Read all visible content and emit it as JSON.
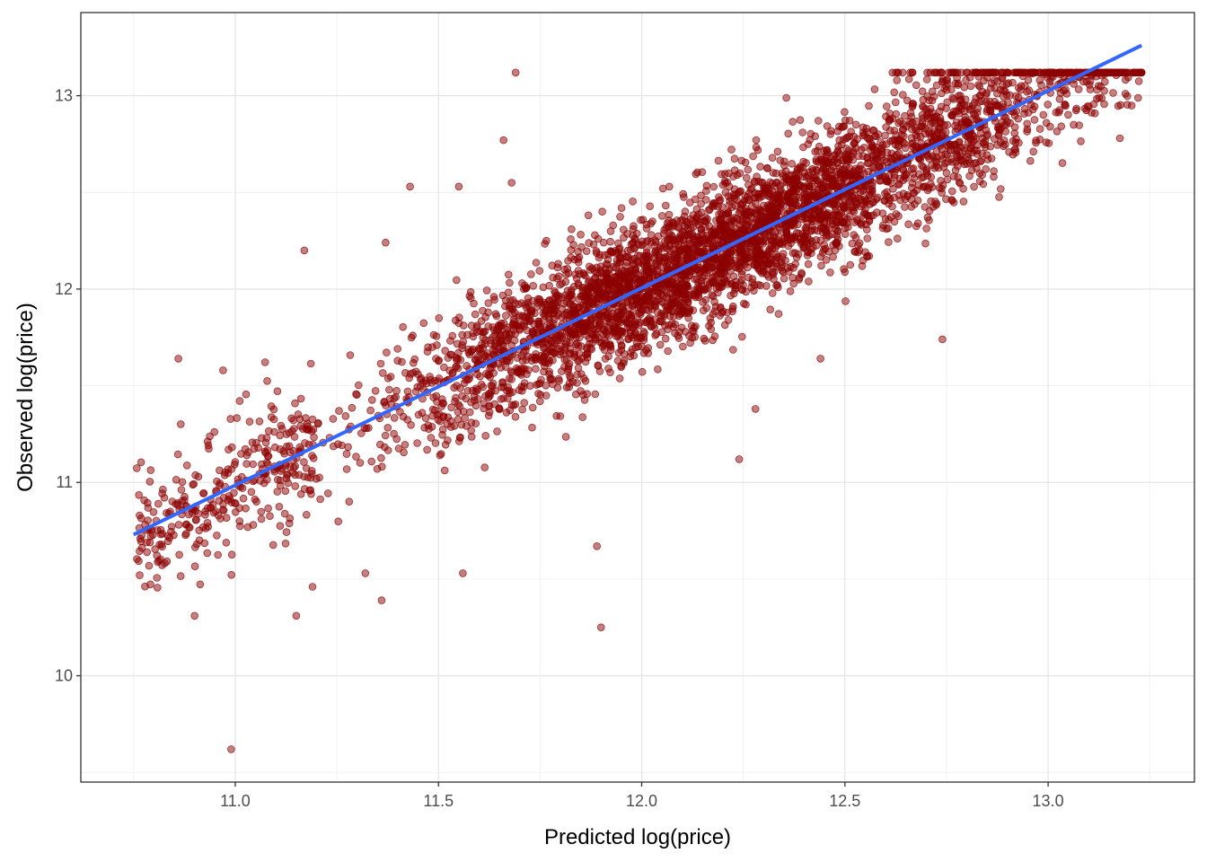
{
  "chart_data": {
    "type": "scatter",
    "title": "",
    "xlabel": "Predicted log(price)",
    "ylabel": "Observed log(price)",
    "xlim": [
      10.62,
      13.36
    ],
    "ylim": [
      9.45,
      13.43
    ],
    "x_ticks": [
      11.0,
      11.5,
      12.0,
      12.5,
      13.0
    ],
    "x_tick_labels": [
      "11.0",
      "11.5",
      "12.0",
      "12.5",
      "13.0"
    ],
    "y_ticks": [
      10,
      11,
      12,
      13
    ],
    "y_tick_labels": [
      "10",
      "11",
      "12",
      "13"
    ],
    "grid": true,
    "legend": "none",
    "point_color": "#8b0000",
    "fit_line_color": "#3366ff",
    "fit_line": {
      "x": [
        10.75,
        13.23
      ],
      "y": [
        10.73,
        13.26
      ]
    },
    "observed_cap": 13.12,
    "n_points_approx": 4500,
    "outliers": [
      {
        "x": 10.99,
        "y": 9.62
      },
      {
        "x": 11.9,
        "y": 10.25
      },
      {
        "x": 11.89,
        "y": 10.67
      },
      {
        "x": 10.9,
        "y": 10.31
      },
      {
        "x": 11.15,
        "y": 10.31
      },
      {
        "x": 11.36,
        "y": 10.39
      },
      {
        "x": 11.32,
        "y": 10.53
      },
      {
        "x": 11.56,
        "y": 10.53
      },
      {
        "x": 11.19,
        "y": 10.46
      },
      {
        "x": 11.17,
        "y": 12.2
      },
      {
        "x": 11.37,
        "y": 12.24
      },
      {
        "x": 10.86,
        "y": 11.64
      },
      {
        "x": 10.97,
        "y": 11.58
      },
      {
        "x": 11.69,
        "y": 13.12
      },
      {
        "x": 11.66,
        "y": 12.77
      },
      {
        "x": 12.24,
        "y": 11.12
      },
      {
        "x": 12.28,
        "y": 11.38
      },
      {
        "x": 12.74,
        "y": 11.74
      },
      {
        "x": 12.44,
        "y": 11.64
      },
      {
        "x": 11.55,
        "y": 12.53
      },
      {
        "x": 11.43,
        "y": 12.53
      },
      {
        "x": 11.68,
        "y": 12.55
      }
    ]
  }
}
